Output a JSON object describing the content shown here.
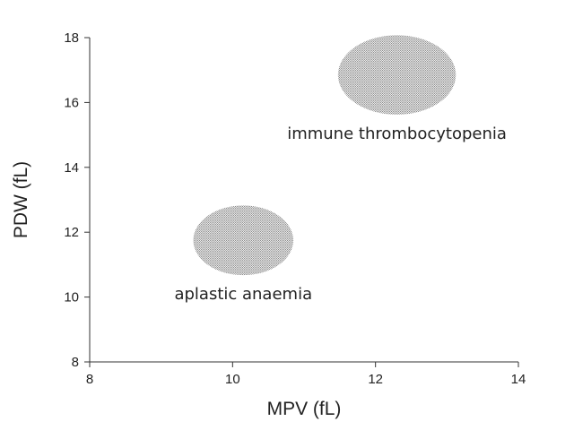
{
  "chart_data": {
    "type": "scatter",
    "xlabel": "MPV (fL)",
    "ylabel": "PDW (fL)",
    "xlim": [
      8,
      14
    ],
    "ylim": [
      8,
      18
    ],
    "xticks": [
      8,
      10,
      12,
      14
    ],
    "yticks": [
      8,
      10,
      12,
      14,
      16,
      18
    ],
    "grid": false,
    "marker_color": "#c8c8c8",
    "regions": [
      {
        "label": "immune thrombocytopenia",
        "center": [
          12.3,
          16.85
        ],
        "x_extent": [
          11.45,
          13.1
        ],
        "y_extent": [
          15.6,
          18.05
        ]
      },
      {
        "label": "aplastic anaemia",
        "center": [
          10.15,
          11.75
        ],
        "x_extent": [
          9.45,
          10.85
        ],
        "y_extent": [
          10.65,
          12.8
        ]
      }
    ]
  }
}
